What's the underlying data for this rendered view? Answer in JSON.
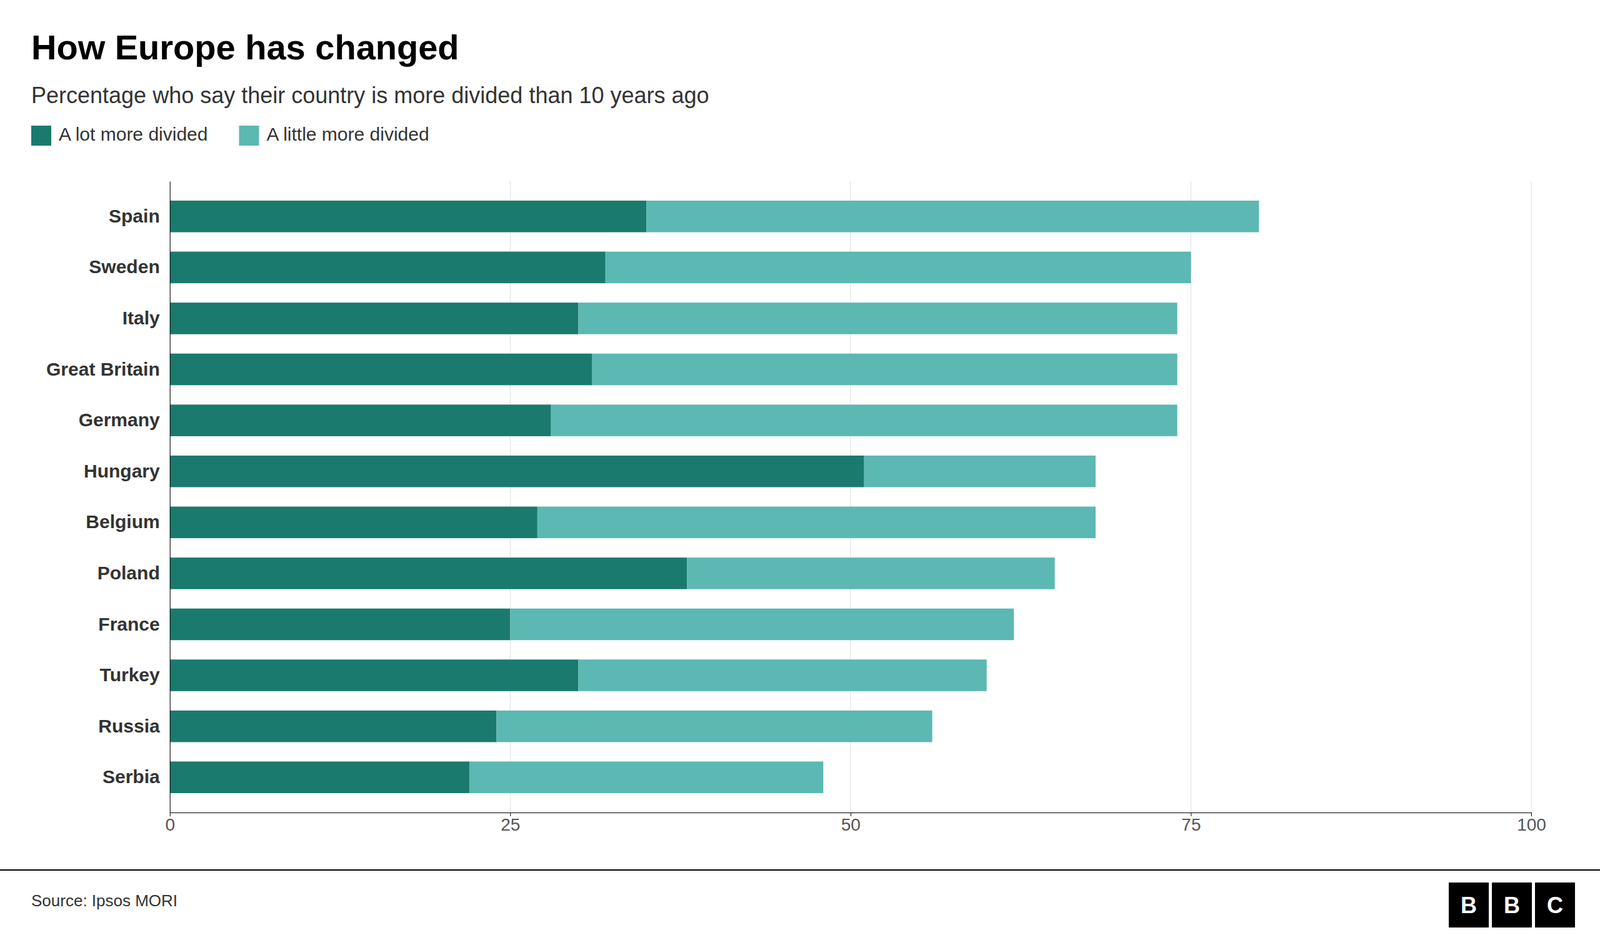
{
  "chart_data": {
    "type": "bar",
    "orientation": "horizontal",
    "stacked": true,
    "title": "How Europe has changed",
    "subtitle": "Percentage who say their country is more divided than 10 years ago",
    "source": "Source: Ipsos MORI",
    "logo": [
      "B",
      "B",
      "C"
    ],
    "categories": [
      "Spain",
      "Sweden",
      "Italy",
      "Great Britain",
      "Germany",
      "Hungary",
      "Belgium",
      "Poland",
      "France",
      "Turkey",
      "Russia",
      "Serbia"
    ],
    "series": [
      {
        "name": "A lot more divided",
        "color": "#1a7a6e",
        "values": [
          35,
          32,
          30,
          31,
          28,
          51,
          27,
          38,
          25,
          30,
          24,
          22
        ]
      },
      {
        "name": "A little more divided",
        "color": "#5cb8b2",
        "values": [
          45,
          43,
          44,
          43,
          46,
          17,
          41,
          27,
          37,
          30,
          32,
          26
        ]
      }
    ],
    "xlim": [
      0,
      100
    ],
    "xticks": [
      0,
      25,
      50,
      75,
      100
    ],
    "grid": true,
    "legend": "upper left"
  }
}
